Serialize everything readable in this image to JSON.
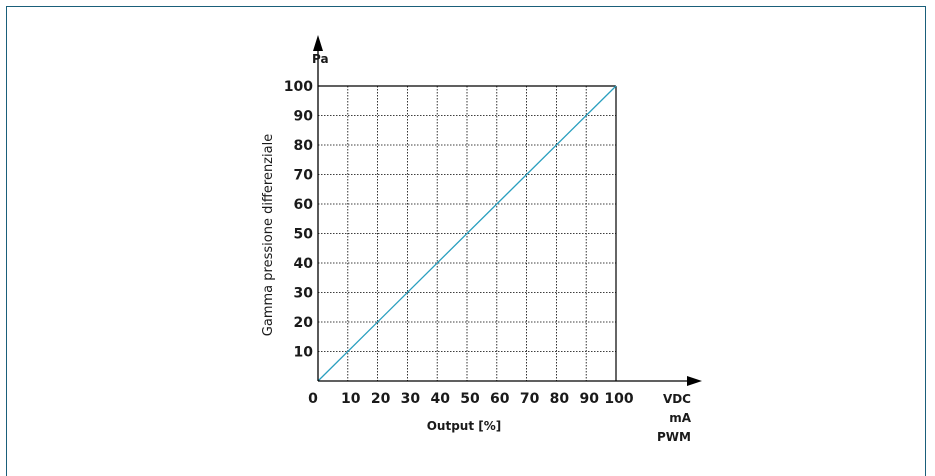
{
  "chart_data": {
    "type": "line",
    "y_unit": "Pa",
    "ylabel": "Gamma pressione differenziale",
    "xlabel": "Output [%]",
    "x_units": [
      "VDC",
      "mA",
      "PWM"
    ],
    "x_ticks": [
      "0",
      "10",
      "20",
      "30",
      "40",
      "50",
      "60",
      "70",
      "80",
      "90",
      "100"
    ],
    "y_ticks": [
      "10",
      "20",
      "30",
      "40",
      "50",
      "60",
      "70",
      "80",
      "90",
      "100"
    ],
    "xlim": [
      0,
      100
    ],
    "ylim": [
      0,
      100
    ],
    "grid": true,
    "series": [
      {
        "x": [
          0,
          100
        ],
        "y": [
          0,
          100
        ],
        "color": "#2a9fbf"
      }
    ]
  },
  "colors": {
    "frame": "#1a5f7a",
    "line": "#2a9fbf",
    "axis": "#000000"
  }
}
